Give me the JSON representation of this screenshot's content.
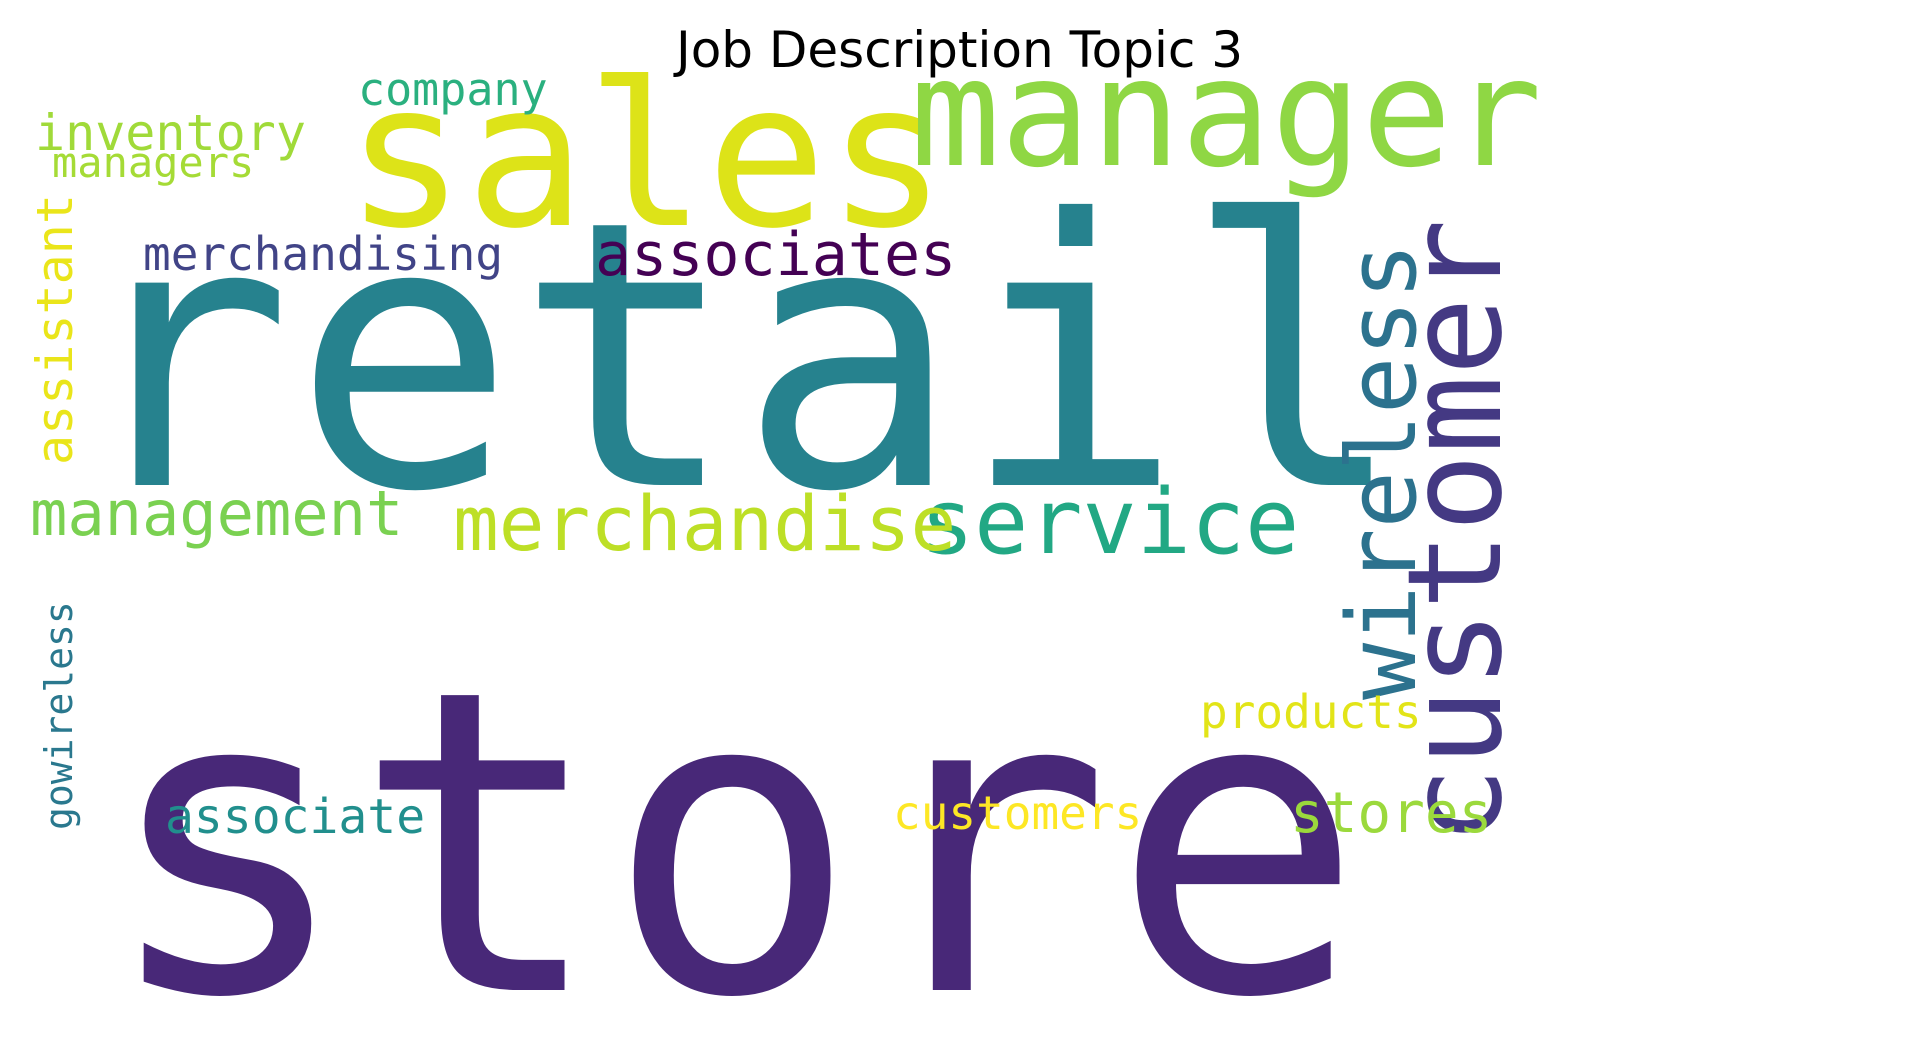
{
  "title": "Job Description Topic 3",
  "words": [
    {
      "text": "store",
      "color": "#482878",
      "orientation": "horizontal"
    },
    {
      "text": "retail",
      "color": "#26828e",
      "orientation": "horizontal"
    },
    {
      "text": "sales",
      "color": "#dde318",
      "orientation": "horizontal"
    },
    {
      "text": "manager",
      "color": "#8fd744",
      "orientation": "horizontal"
    },
    {
      "text": "customer",
      "color": "#443983",
      "orientation": "vertical"
    },
    {
      "text": "wireless",
      "color": "#2c728e",
      "orientation": "vertical"
    },
    {
      "text": "service",
      "color": "#22a884",
      "orientation": "horizontal"
    },
    {
      "text": "merchandise",
      "color": "#bddf26",
      "orientation": "horizontal"
    },
    {
      "text": "associates",
      "color": "#440154",
      "orientation": "horizontal"
    },
    {
      "text": "management",
      "color": "#7ad151",
      "orientation": "horizontal"
    },
    {
      "text": "merchandising",
      "color": "#414487",
      "orientation": "horizontal"
    },
    {
      "text": "inventory",
      "color": "#a0da39",
      "orientation": "horizontal"
    },
    {
      "text": "company",
      "color": "#2ab07f",
      "orientation": "horizontal"
    },
    {
      "text": "managers",
      "color": "#a5db36",
      "orientation": "horizontal"
    },
    {
      "text": "assistant",
      "color": "#eae51a",
      "orientation": "vertical"
    },
    {
      "text": "stores",
      "color": "#9bd93c",
      "orientation": "horizontal"
    },
    {
      "text": "products",
      "color": "#e2e418",
      "orientation": "horizontal"
    },
    {
      "text": "customers",
      "color": "#fde725",
      "orientation": "horizontal"
    },
    {
      "text": "associate",
      "color": "#218f8d",
      "orientation": "horizontal"
    },
    {
      "text": "gowireless",
      "color": "#2a788e",
      "orientation": "vertical"
    }
  ]
}
